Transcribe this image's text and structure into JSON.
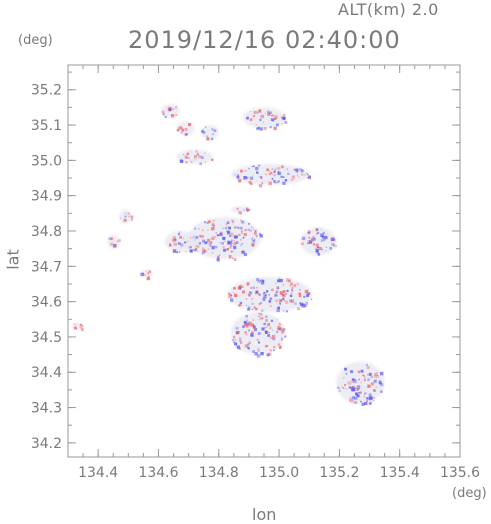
{
  "header": {
    "altitude_label": "ALT(km) 2.0",
    "timestamp": "2019/12/16 02:40:00"
  },
  "axes": {
    "x_unit": "(deg)",
    "y_unit": "(deg)",
    "x_label": "lon",
    "y_label": "lat"
  },
  "colors": {
    "frame": "#9a9a9a",
    "positive": "#f06666",
    "negative": "#5a5af0",
    "neutral": "#e6e6f2"
  },
  "chart_data": {
    "type": "heatmap",
    "xlabel": "lon",
    "ylabel": "lat",
    "xlim": [
      134.3,
      135.6
    ],
    "ylim": [
      34.16,
      35.27
    ],
    "x_ticks": [
      "134.4",
      "134.6",
      "134.8",
      "135.0",
      "135.2",
      "135.4",
      "135.6"
    ],
    "y_ticks": [
      "34.2",
      "34.3",
      "34.4",
      "34.5",
      "34.6",
      "34.7",
      "34.8",
      "34.9",
      "35.0",
      "35.1",
      "35.2"
    ],
    "grid": false,
    "regions": [
      {
        "lon": 134.64,
        "lat": 35.14,
        "rlon": 0.03,
        "rlat": 0.02,
        "sign": "pos"
      },
      {
        "lon": 134.69,
        "lat": 35.09,
        "rlon": 0.03,
        "rlat": 0.02,
        "sign": "pos"
      },
      {
        "lon": 134.77,
        "lat": 35.08,
        "rlon": 0.03,
        "rlat": 0.02,
        "sign": "neg"
      },
      {
        "lon": 134.95,
        "lat": 35.12,
        "rlon": 0.07,
        "rlat": 0.03,
        "sign": "mix"
      },
      {
        "lon": 134.72,
        "lat": 35.01,
        "rlon": 0.06,
        "rlat": 0.02,
        "sign": "mix"
      },
      {
        "lon": 134.97,
        "lat": 34.96,
        "rlon": 0.13,
        "rlat": 0.03,
        "sign": "mix"
      },
      {
        "lon": 134.82,
        "lat": 34.78,
        "rlon": 0.12,
        "rlat": 0.06,
        "sign": "mix"
      },
      {
        "lon": 134.68,
        "lat": 34.77,
        "rlon": 0.06,
        "rlat": 0.03,
        "sign": "mix"
      },
      {
        "lon": 134.45,
        "lat": 34.77,
        "rlon": 0.02,
        "rlat": 0.02,
        "sign": "pos"
      },
      {
        "lon": 134.49,
        "lat": 34.84,
        "rlon": 0.02,
        "rlat": 0.02,
        "sign": "pos"
      },
      {
        "lon": 135.13,
        "lat": 34.77,
        "rlon": 0.06,
        "rlat": 0.04,
        "sign": "mix"
      },
      {
        "lon": 134.97,
        "lat": 34.62,
        "rlon": 0.14,
        "rlat": 0.05,
        "sign": "mix"
      },
      {
        "lon": 134.93,
        "lat": 34.51,
        "rlon": 0.09,
        "rlat": 0.06,
        "sign": "mix"
      },
      {
        "lon": 134.33,
        "lat": 34.53,
        "rlon": 0.02,
        "rlat": 0.01,
        "sign": "pos"
      },
      {
        "lon": 135.27,
        "lat": 34.37,
        "rlon": 0.08,
        "rlat": 0.06,
        "sign": "mix"
      },
      {
        "lon": 134.56,
        "lat": 34.68,
        "rlon": 0.02,
        "rlat": 0.01,
        "sign": "pos"
      },
      {
        "lon": 134.87,
        "lat": 34.86,
        "rlon": 0.03,
        "rlat": 0.01,
        "sign": "mix"
      }
    ]
  }
}
